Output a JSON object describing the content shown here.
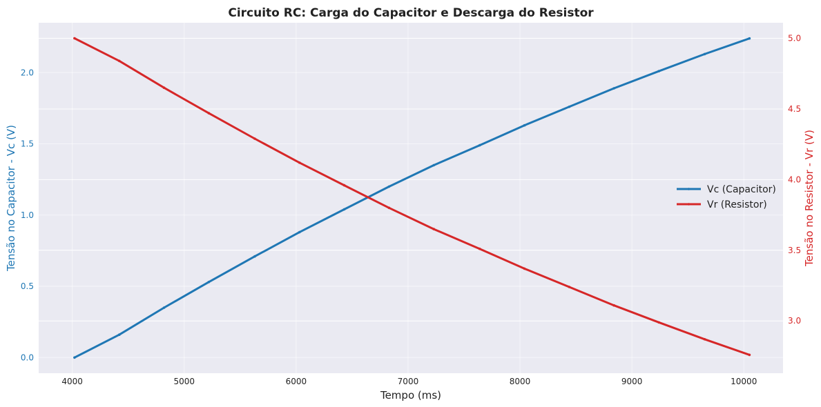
{
  "chart_data": {
    "type": "line",
    "title": "Circuito RC: Carga do Capacitor e Descarga do Resistor",
    "xlabel": "Tempo (ms)",
    "ylabel_left": "Tensão no Capacitor - Vc (V)",
    "ylabel_right": "Tensão no Resistor - Vr (V)",
    "xlim": [
      3700,
      10350
    ],
    "ylim_left": [
      -0.11,
      2.35
    ],
    "ylim_right": [
      2.63,
      5.11
    ],
    "x_ticks": [
      4000,
      5000,
      6000,
      7000,
      8000,
      9000,
      10000
    ],
    "y_left_ticks": [
      0.0,
      0.5,
      1.0,
      1.5,
      2.0
    ],
    "y_right_ticks": [
      3.0,
      3.5,
      4.0,
      4.5,
      5.0
    ],
    "grid": true,
    "legend_position": "center-right",
    "colors": {
      "capacitor": "#1f77b4",
      "resistor": "#d62728",
      "plot_bg": "#eaeaf2",
      "grid": "#ffffff"
    },
    "series": [
      {
        "name": "Vc (Capacitor)",
        "axis": "left",
        "x": [
          4020,
          4420,
          4820,
          5220,
          5630,
          6030,
          6430,
          6830,
          7230,
          7640,
          8040,
          8440,
          8840,
          9240,
          9650,
          10050
        ],
        "values": [
          0.0,
          0.16,
          0.35,
          0.53,
          0.71,
          0.88,
          1.04,
          1.2,
          1.35,
          1.49,
          1.63,
          1.76,
          1.89,
          2.01,
          2.13,
          2.24
        ]
      },
      {
        "name": "Vr (Resistor)",
        "axis": "right",
        "x": [
          4020,
          4420,
          4820,
          5220,
          5630,
          6030,
          6430,
          6830,
          7230,
          7640,
          8040,
          8440,
          8840,
          9240,
          9650,
          10050
        ],
        "values": [
          5.0,
          4.84,
          4.65,
          4.47,
          4.29,
          4.12,
          3.96,
          3.8,
          3.65,
          3.51,
          3.37,
          3.24,
          3.11,
          2.99,
          2.87,
          2.76
        ]
      }
    ]
  }
}
